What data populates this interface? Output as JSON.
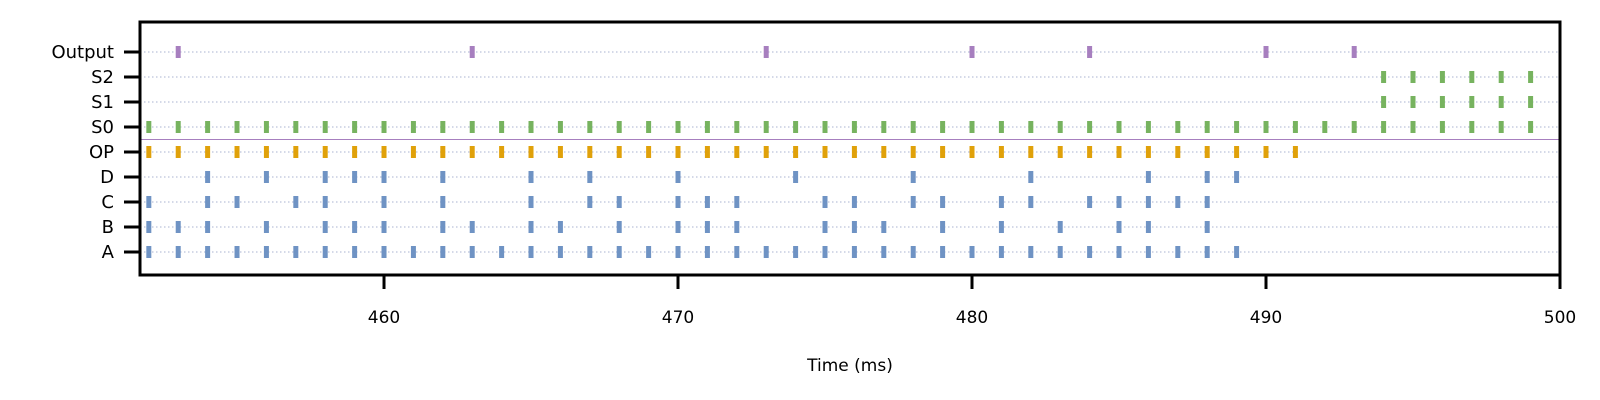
{
  "chart_data": {
    "type": "scatter",
    "subtype": "spike-raster",
    "title": "",
    "xlabel": "Time (ms)",
    "ylabel": "",
    "xlim": [
      451.7,
      500
    ],
    "xticks": [
      460,
      470,
      480,
      490,
      500
    ],
    "grid": "dotted row guide lines",
    "rows": [
      "A",
      "B",
      "C",
      "D",
      "OP",
      "S0",
      "S1",
      "S2",
      "Output"
    ],
    "separator_between": [
      "OP",
      "S0"
    ],
    "colors": {
      "input": "#6f93c4",
      "op": "#e0a10a",
      "state": "#77b35f",
      "output": "#a77fbf",
      "separator": "#a77fbf",
      "gridline": "#aab3d0"
    },
    "series": [
      {
        "row": "A",
        "color_key": "input",
        "x": [
          452,
          453,
          454,
          455,
          456,
          457,
          458,
          459,
          460,
          461,
          462,
          463,
          464,
          465,
          466,
          467,
          468,
          469,
          470,
          471,
          472,
          473,
          474,
          475,
          476,
          477,
          478,
          479,
          480,
          481,
          482,
          483,
          484,
          485,
          486,
          487,
          488,
          489
        ]
      },
      {
        "row": "B",
        "color_key": "input",
        "x": [
          452,
          453,
          454,
          456,
          458,
          459,
          460,
          462,
          463,
          465,
          466,
          468,
          470,
          471,
          472,
          475,
          476,
          477,
          479,
          481,
          483,
          485,
          486,
          488
        ]
      },
      {
        "row": "C",
        "color_key": "input",
        "x": [
          452,
          454,
          455,
          457,
          458,
          460,
          462,
          465,
          467,
          468,
          470,
          471,
          472,
          475,
          476,
          478,
          479,
          481,
          482,
          484,
          485,
          486,
          487,
          488
        ]
      },
      {
        "row": "D",
        "color_key": "input",
        "x": [
          454,
          456,
          458,
          459,
          460,
          462,
          465,
          467,
          470,
          474,
          478,
          482,
          486,
          488,
          489
        ]
      },
      {
        "row": "OP",
        "color_key": "op",
        "x": [
          452,
          453,
          454,
          455,
          456,
          457,
          458,
          459,
          460,
          461,
          462,
          463,
          464,
          465,
          466,
          467,
          468,
          469,
          470,
          471,
          472,
          473,
          474,
          475,
          476,
          477,
          478,
          479,
          480,
          481,
          482,
          483,
          484,
          485,
          486,
          487,
          488,
          489,
          490,
          491
        ]
      },
      {
        "row": "S0",
        "color_key": "state",
        "x": [
          452,
          453,
          454,
          455,
          456,
          457,
          458,
          459,
          460,
          461,
          462,
          463,
          464,
          465,
          466,
          467,
          468,
          469,
          470,
          471,
          472,
          473,
          474,
          475,
          476,
          477,
          478,
          479,
          480,
          481,
          482,
          483,
          484,
          485,
          486,
          487,
          488,
          489,
          490,
          491,
          492,
          493,
          494,
          495,
          496,
          497,
          498,
          499
        ]
      },
      {
        "row": "S1",
        "color_key": "state",
        "x": [
          494,
          495,
          496,
          497,
          498,
          499
        ]
      },
      {
        "row": "S2",
        "color_key": "state",
        "x": [
          494,
          495,
          496,
          497,
          498,
          499
        ]
      },
      {
        "row": "Output",
        "color_key": "output",
        "x": [
          453,
          463,
          473,
          480,
          484,
          490,
          493
        ]
      }
    ]
  }
}
